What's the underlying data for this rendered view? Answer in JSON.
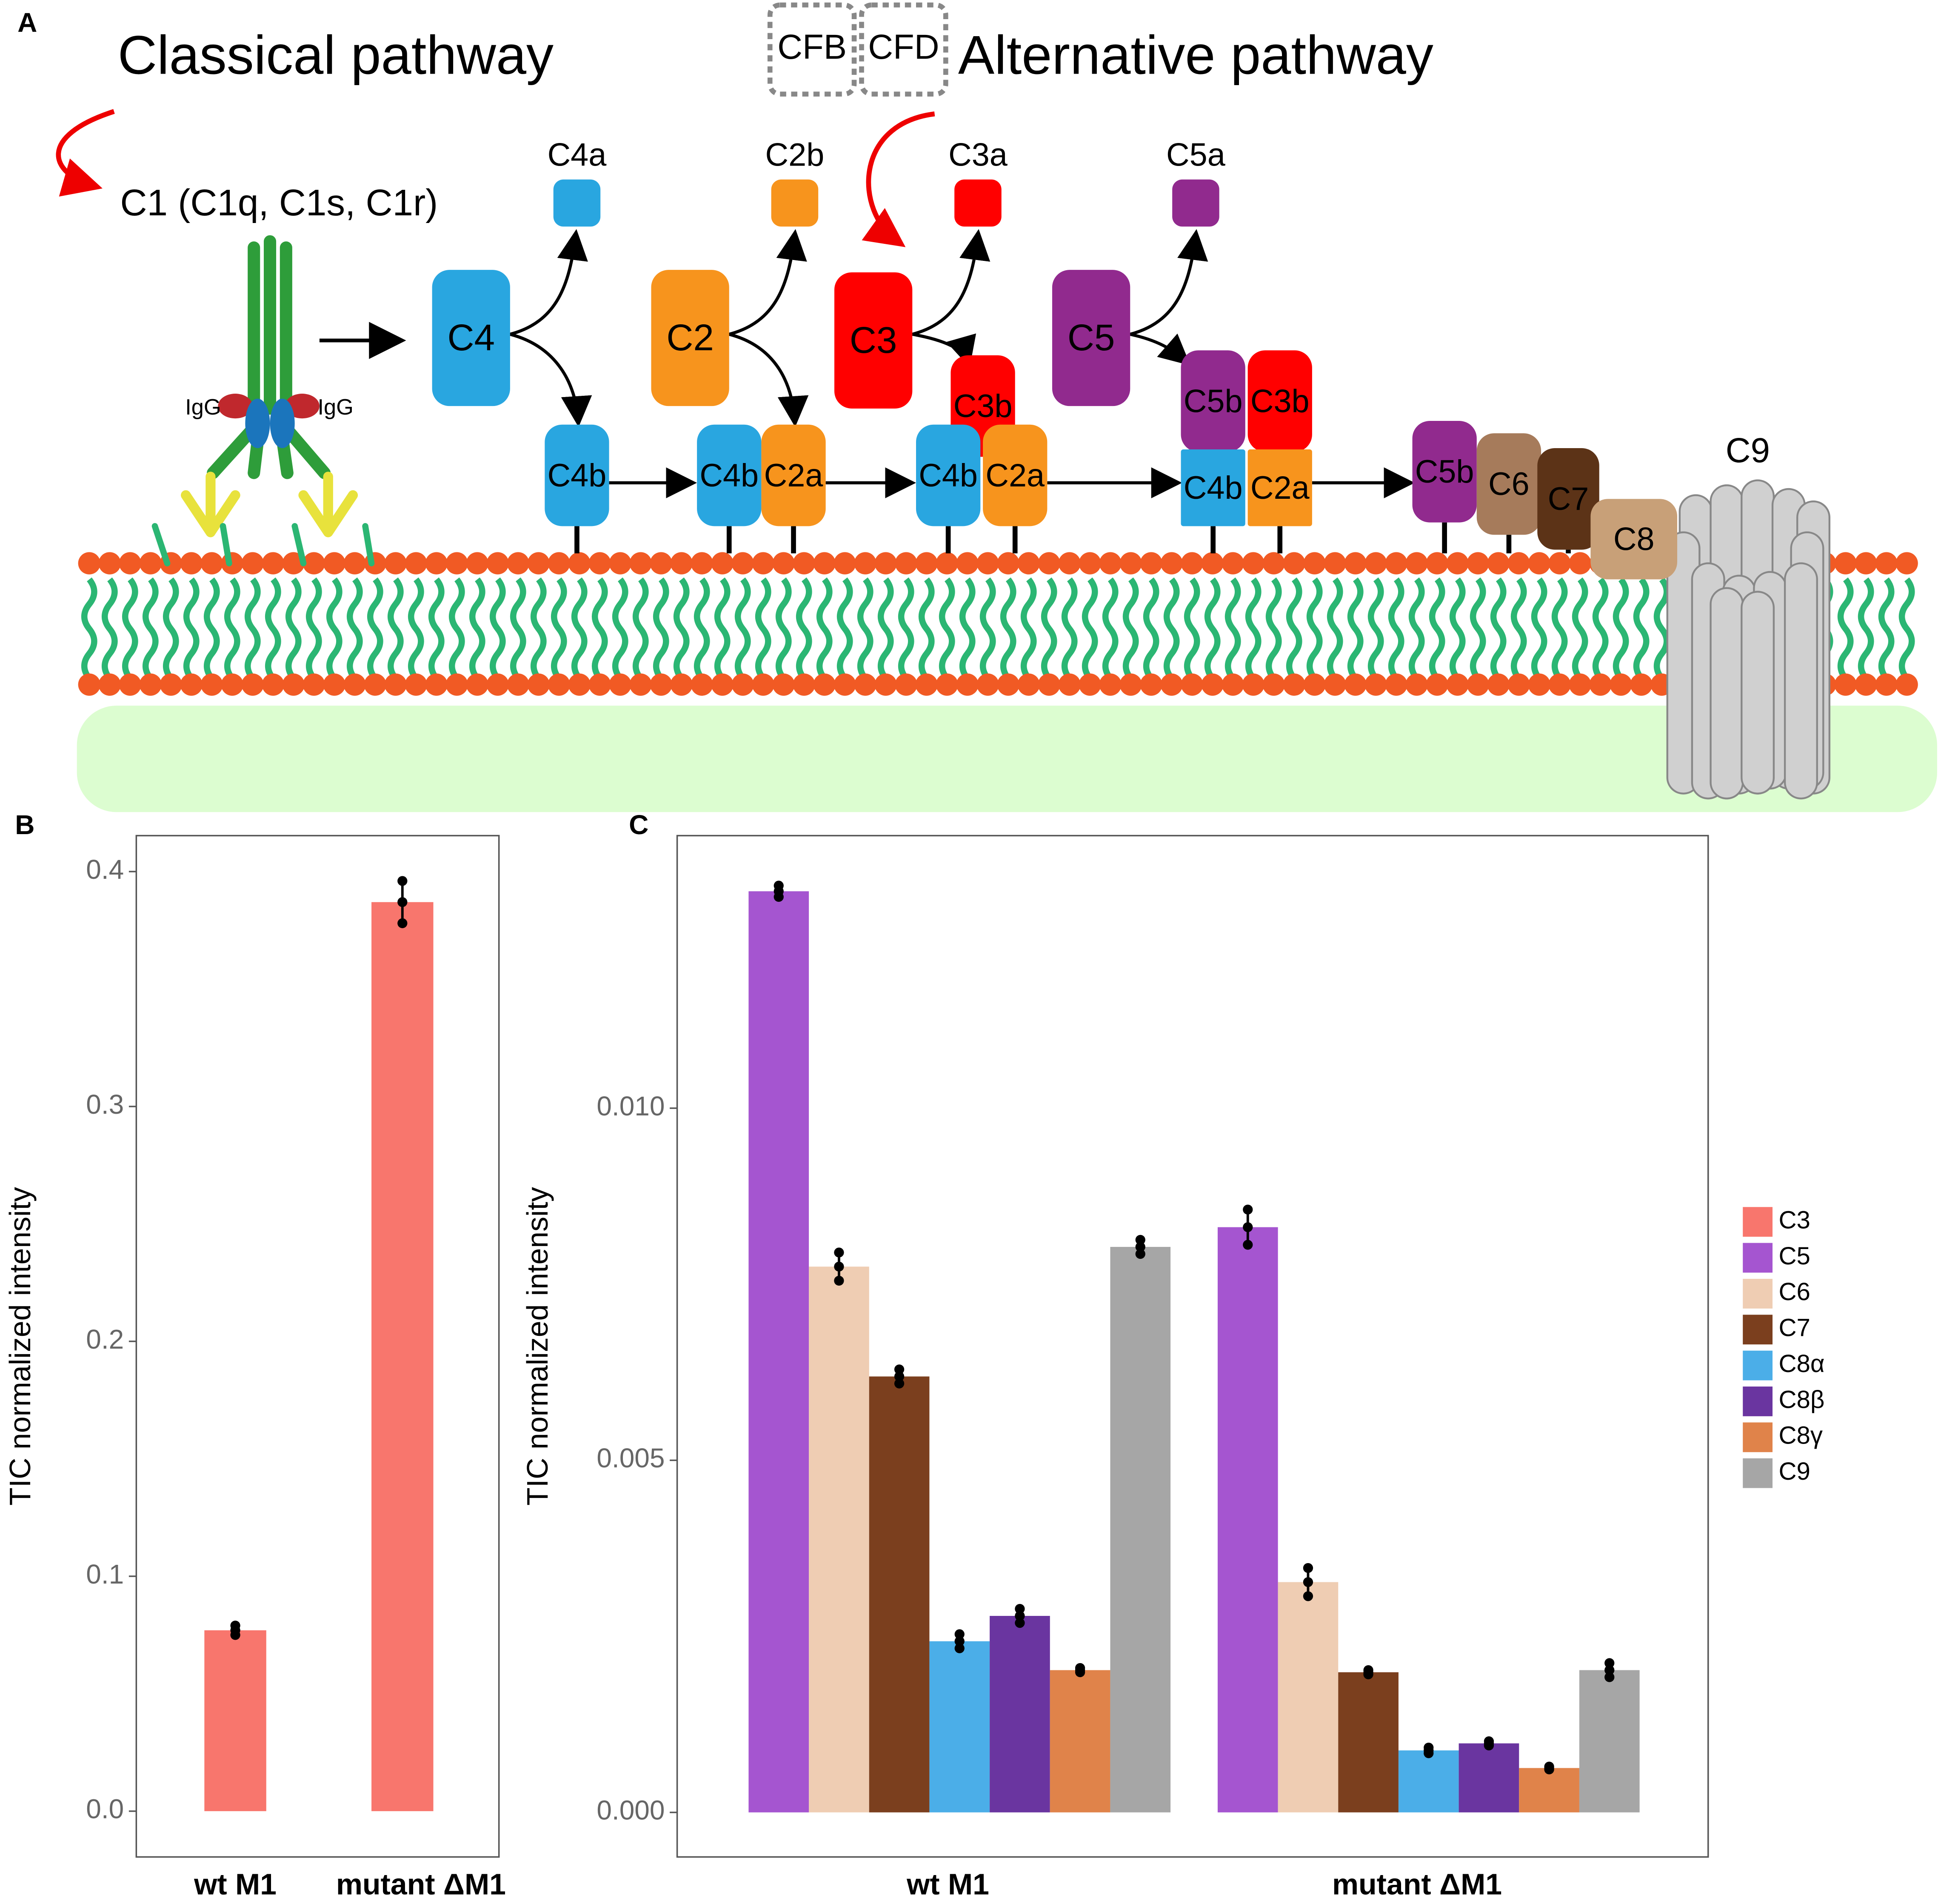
{
  "panels": [
    "A",
    "B",
    "C"
  ],
  "diagram": {
    "classical": "Classical pathway",
    "alternative": "Alternative pathway",
    "factors": [
      "CFB",
      "CFD"
    ],
    "c1": "C1 (C1q, C1s, C1r)",
    "igg": [
      "IgG",
      "IgG"
    ],
    "fragments": [
      "C4a",
      "C2b",
      "C3a",
      "C5a"
    ],
    "components": [
      "C4",
      "C2",
      "C3",
      "C5",
      "C4b",
      "C4b",
      "C2a",
      "C3b",
      "C4b",
      "C2a",
      "C5b",
      "C3b",
      "C4b",
      "C2a",
      "C5b",
      "C6",
      "C7",
      "C8"
    ],
    "pore": "C9"
  },
  "chart_data": [
    {
      "type": "bar",
      "ylabel": "TIC normalized intensity",
      "categories": [
        "wt M1",
        "mutant ΔM1"
      ],
      "values": [
        0.077,
        0.387
      ],
      "errors": [
        0.002,
        0.009
      ],
      "color": "#f8766d",
      "ylim": [
        -0.0195,
        0.4153
      ],
      "yticks": [
        {
          "value": 0,
          "label": "0.0"
        },
        0.1,
        0.2,
        0.3,
        0.4
      ]
    },
    {
      "type": "bar",
      "ylabel": "TIC normalized intensity",
      "categories": [
        "wt M1",
        "mutant ΔM1"
      ],
      "series": [
        {
          "name": "C3",
          "color": "#f8766d",
          "values": [
            null,
            null
          ],
          "errors": [
            null,
            null
          ]
        },
        {
          "name": "C5",
          "color": "#a555d0",
          "values": [
            0.01308,
            0.00831
          ],
          "errors": [
            8e-05,
            0.00025
          ]
        },
        {
          "name": "C6",
          "color": "#efcdb3",
          "values": [
            0.00775,
            0.00327
          ],
          "errors": [
            0.0002,
            0.0002
          ]
        },
        {
          "name": "C7",
          "color": "#7b3f1e",
          "values": [
            0.00619,
            0.00199
          ],
          "errors": [
            0.0001,
            3e-05
          ]
        },
        {
          "name": "C8α",
          "color": "#4baee8",
          "values": [
            0.00243,
            0.00088
          ],
          "errors": [
            0.0001,
            4e-05
          ]
        },
        {
          "name": "C8β",
          "color": "#6a35a0",
          "values": [
            0.00279,
            0.00098
          ],
          "errors": [
            0.0001,
            3e-05
          ]
        },
        {
          "name": "C8γ",
          "color": "#e0834a",
          "values": [
            0.00202,
            0.00063
          ],
          "errors": [
            3e-05,
            2e-05
          ]
        },
        {
          "name": "C9",
          "color": "#a6a6a6",
          "values": [
            0.00803,
            0.00202
          ],
          "errors": [
            0.0001,
            0.0001
          ]
        }
      ],
      "ylim": [
        -0.000633,
        0.01387
      ],
      "yticks": [
        {
          "value": 0,
          "label": "0.000"
        },
        {
          "value": 0.005,
          "label": "0.005"
        },
        {
          "value": 0.01,
          "label": "0.010"
        }
      ]
    }
  ]
}
